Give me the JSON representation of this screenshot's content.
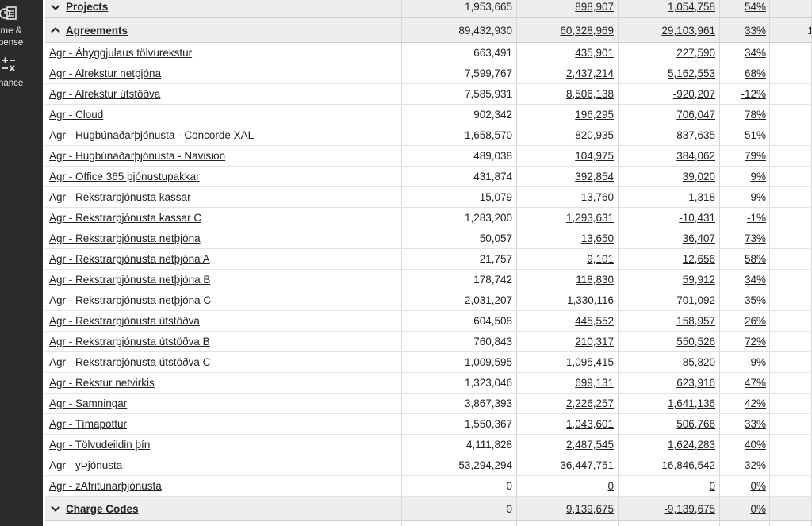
{
  "sidebar": {
    "items": [
      {
        "icon": "timer-list-icon",
        "label_lines": [
          "ime &",
          "pense"
        ]
      },
      {
        "icon": "calculator-icon",
        "label_lines": [
          "nance"
        ]
      }
    ]
  },
  "groups": {
    "projects": {
      "label": "Projects",
      "expanded": false,
      "values": [
        "1,953,665",
        "898,907",
        "1,054,758",
        "54%"
      ],
      "extra": ""
    },
    "agreements": {
      "label": "Agreements",
      "expanded": true,
      "values": [
        "89,432,930",
        "60,328,969",
        "29,103,961",
        "33%"
      ],
      "extra": "1"
    },
    "charge_codes": {
      "label": "Charge Codes",
      "expanded": false,
      "values": [
        "0",
        "9,139,675",
        "-9,139,675",
        "0%"
      ],
      "extra": ""
    }
  },
  "rows": [
    {
      "name": "Agr - Áhyggjulaus tölvurekstur",
      "v1": "663,491",
      "v2": "435,901",
      "v3": "227,590",
      "pct": "34%"
    },
    {
      "name": "Agr - Alrekstur netþjóna",
      "v1": "7,599,767",
      "v2": "2,437,214",
      "v3": "5,162,553",
      "pct": "68%"
    },
    {
      "name": "Agr - Alrekstur útstöðva",
      "v1": "7,585,931",
      "v2": "8,506,138",
      "v3": "-920,207",
      "pct": "-12%"
    },
    {
      "name": "Agr - Cloud",
      "v1": "902,342",
      "v2": "196,295",
      "v3": "706,047",
      "pct": "78%"
    },
    {
      "name": "Agr - Hugbúnaðarþjónusta - Concorde XAL",
      "v1": "1,658,570",
      "v2": "820,935",
      "v3": "837,635",
      "pct": "51%"
    },
    {
      "name": "Agr - Hugbúnaðarþjónusta - Navision",
      "v1": "489,038",
      "v2": "104,975",
      "v3": "384,062",
      "pct": "79%"
    },
    {
      "name": "Agr - Office 365 þjónustupakkar",
      "v1": "431,874",
      "v2": "392,854",
      "v3": "39,020",
      "pct": "9%"
    },
    {
      "name": "Agr - Rekstrarþjónusta kassar",
      "v1": "15,079",
      "v2": "13,760",
      "v3": "1,318",
      "pct": "9%"
    },
    {
      "name": "Agr - Rekstrarþjónusta kassar C",
      "v1": "1,283,200",
      "v2": "1,293,631",
      "v3": "-10,431",
      "pct": "-1%"
    },
    {
      "name": "Agr - Rekstrarþjónusta netþjóna",
      "v1": "50,057",
      "v2": "13,650",
      "v3": "36,407",
      "pct": "73%"
    },
    {
      "name": "Agr - Rekstrarþjónusta netþjóna A",
      "v1": "21,757",
      "v2": "9,101",
      "v3": "12,656",
      "pct": "58%"
    },
    {
      "name": "Agr - Rekstrarþjónusta netþjóna B",
      "v1": "178,742",
      "v2": "118,830",
      "v3": "59,912",
      "pct": "34%"
    },
    {
      "name": "Agr - Rekstrarþjónusta netþjóna C",
      "v1": "2,031,207",
      "v2": "1,330,116",
      "v3": "701,092",
      "pct": "35%"
    },
    {
      "name": "Agr - Rekstrarþjónusta útstöðva",
      "v1": "604,508",
      "v2": "445,552",
      "v3": "158,957",
      "pct": "26%"
    },
    {
      "name": "Agr - Rekstrarþjónusta útstöðva B",
      "v1": "760,843",
      "v2": "210,317",
      "v3": "550,526",
      "pct": "72%"
    },
    {
      "name": "Agr - Rekstrarþjónusta útstöðva C",
      "v1": "1,009,595",
      "v2": "1,095,415",
      "v3": "-85,820",
      "pct": "-9%"
    },
    {
      "name": "Agr - Rekstur netvirkis",
      "v1": "1,323,046",
      "v2": "699,131",
      "v3": "623,916",
      "pct": "47%"
    },
    {
      "name": "Agr - Samningar",
      "v1": "3,867,393",
      "v2": "2,226,257",
      "v3": "1,641,136",
      "pct": "42%"
    },
    {
      "name": "Agr - Tímapottur",
      "v1": "1,550,367",
      "v2": "1,043,601",
      "v3": "506,766",
      "pct": "33%"
    },
    {
      "name": "Agr - Tölvudeildin þín",
      "v1": "4,111,828",
      "v2": "2,487,545",
      "v3": "1,624,283",
      "pct": "40%"
    },
    {
      "name": "Agr - yÞjónusta",
      "v1": "53,294,294",
      "v2": "36,447,751",
      "v3": "16,846,542",
      "pct": "32%"
    },
    {
      "name": "Agr - zAfritunarþjónusta",
      "v1": "0",
      "v2": "0",
      "v3": "0",
      "pct": "0%"
    }
  ]
}
